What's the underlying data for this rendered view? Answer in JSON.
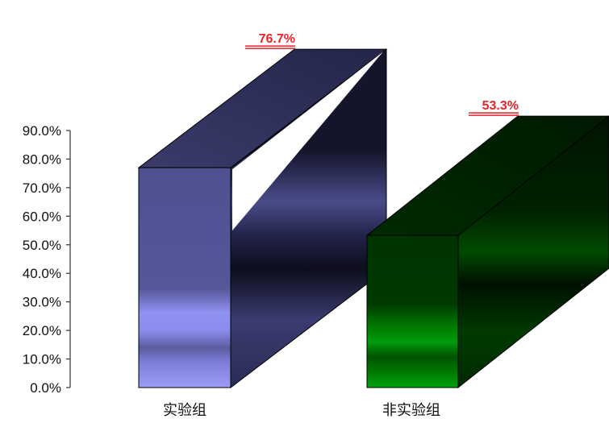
{
  "chart_data": {
    "type": "bar",
    "style": "3d-box",
    "categories": [
      "实验组",
      "非实验组"
    ],
    "values": [
      76.7,
      53.3
    ],
    "value_labels": [
      "76.7%",
      "53.3%"
    ],
    "yticks": [
      "0.0%",
      "10.0%",
      "20.0%",
      "30.0%",
      "40.0%",
      "50.0%",
      "60.0%",
      "70.0%",
      "80.0%",
      "90.0%"
    ],
    "ylim": [
      0,
      90
    ],
    "title": "",
    "xlabel": "",
    "ylabel": "",
    "grid": false,
    "legend": "none",
    "colors": {
      "bars": [
        "#5a5c9e",
        "#0a6a0a"
      ],
      "data_label": "#e8232a",
      "axis": "#333333"
    }
  }
}
